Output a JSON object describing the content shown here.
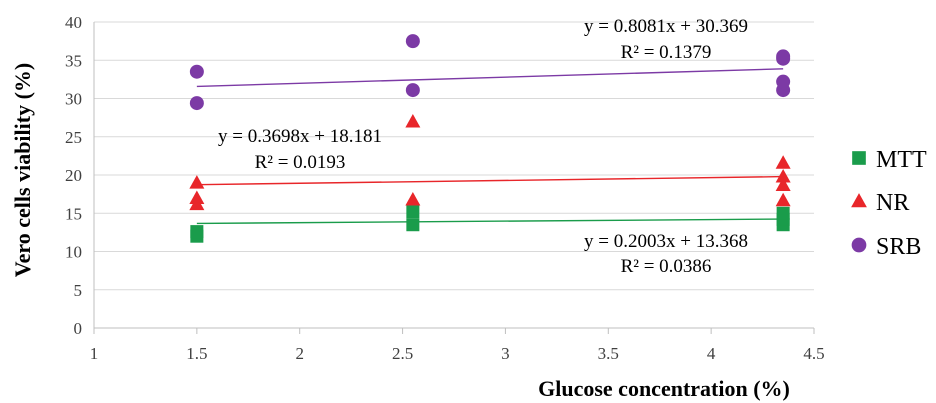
{
  "chart_data": {
    "type": "scatter",
    "xlabel": "Glucose concentration (%)",
    "ylabel": "Vero cells viability (%)",
    "xlim": [
      1,
      4.5
    ],
    "ylim": [
      0,
      40
    ],
    "x_ticks": [
      "1",
      "1.5",
      "2",
      "2.5",
      "3",
      "3.5",
      "4",
      "4.5"
    ],
    "y_ticks": [
      "0",
      "5",
      "10",
      "15",
      "20",
      "25",
      "30",
      "35",
      "40"
    ],
    "grid": "horizontal",
    "legend_position": "right",
    "series": [
      {
        "name": "MTT",
        "color": "#1a9c4b",
        "marker": "square",
        "points": [
          [
            1.5,
            12.0
          ],
          [
            1.5,
            12.6
          ],
          [
            2.55,
            13.5
          ],
          [
            2.55,
            15.2
          ],
          [
            4.35,
            13.5
          ],
          [
            4.35,
            14.2
          ],
          [
            4.35,
            15.0
          ]
        ],
        "trendline": {
          "slope": 0.2003,
          "intercept": 13.368,
          "x_range": [
            1.5,
            4.35
          ]
        },
        "equation": "y = 0.2003x + 13.368",
        "r2": "R² = 0.0386"
      },
      {
        "name": "NR",
        "color": "#e8262a",
        "marker": "triangle",
        "points": [
          [
            1.5,
            16.2
          ],
          [
            1.5,
            17.0
          ],
          [
            1.5,
            19.0
          ],
          [
            2.55,
            16.8
          ],
          [
            2.55,
            27.0
          ],
          [
            4.35,
            16.7
          ],
          [
            4.35,
            18.7
          ],
          [
            4.35,
            19.8
          ],
          [
            4.35,
            21.6
          ]
        ],
        "trendline": {
          "slope": 0.3698,
          "intercept": 18.181,
          "x_range": [
            1.5,
            4.35
          ]
        },
        "equation": "y = 0.3698x + 18.181",
        "r2": "R² = 0.0193"
      },
      {
        "name": "SRB",
        "color": "#7c3aa5",
        "marker": "circle",
        "points": [
          [
            1.5,
            29.4
          ],
          [
            1.5,
            33.5
          ],
          [
            2.55,
            31.1
          ],
          [
            2.55,
            37.5
          ],
          [
            4.35,
            31.1
          ],
          [
            4.35,
            32.2
          ],
          [
            4.35,
            35.2
          ],
          [
            4.35,
            35.5
          ]
        ],
        "trendline": {
          "slope": 0.8081,
          "intercept": 30.369,
          "x_range": [
            1.5,
            4.35
          ]
        },
        "equation": "y = 0.8081x + 30.369",
        "r2": "R² = 0.1379"
      }
    ]
  }
}
